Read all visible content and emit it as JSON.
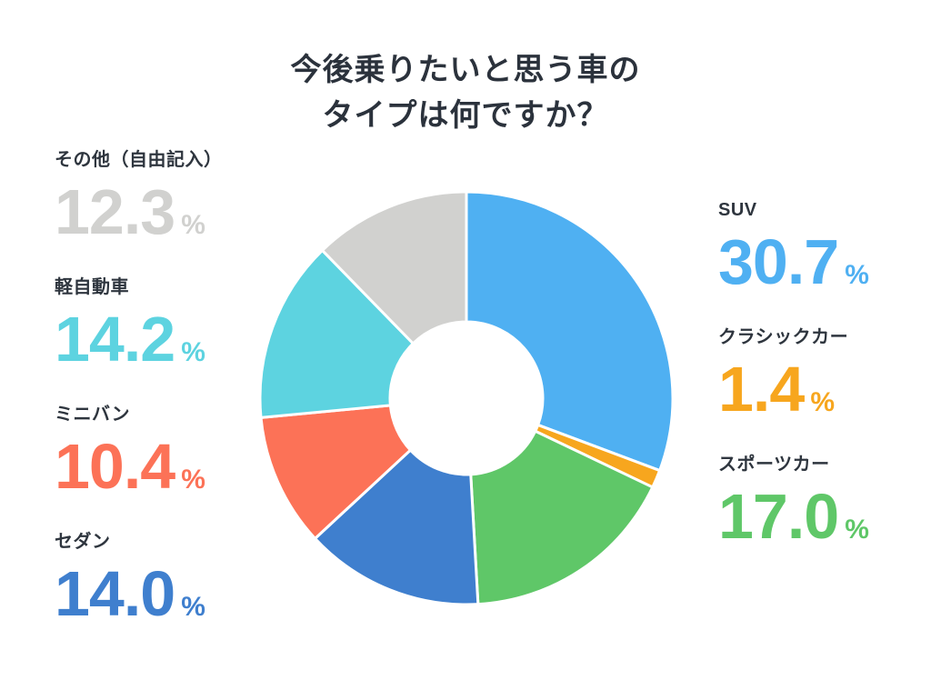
{
  "title": {
    "lines": [
      "今後乗りたいと思う車の",
      "タイプは何ですか？"
    ],
    "full": "今後乗りたいと思う車のタイプは何ですか？"
  },
  "text_colors": {
    "title": "#2B323C",
    "label": "#2E353E"
  },
  "chart_data": {
    "type": "pie",
    "subtype": "donut",
    "title": "今後乗りたいと思う車のタイプは何ですか？",
    "unit": "%",
    "direction": "clockwise",
    "start_angle_deg": 0,
    "inner_radius_ratio": 0.37,
    "slices": [
      {
        "label": "SUV",
        "value": 30.7,
        "display": "30.7",
        "color": "#4FB0F2"
      },
      {
        "label": "クラシックカー",
        "value": 1.4,
        "display": "1.4",
        "color": "#F7A61E"
      },
      {
        "label": "スポーツカー",
        "value": 17.0,
        "display": "17.0",
        "color": "#5FC768"
      },
      {
        "label": "セダン",
        "value": 14.0,
        "display": "14.0",
        "color": "#3F7FCE"
      },
      {
        "label": "ミニバン",
        "value": 10.4,
        "display": "10.4",
        "color": "#FC7257"
      },
      {
        "label": "軽自動車",
        "value": 14.2,
        "display": "14.2",
        "color": "#5DD3E0"
      },
      {
        "label": "その他（自由記入）",
        "value": 12.3,
        "display": "12.3",
        "color": "#D1D1CF"
      }
    ],
    "legend_left_indices": [
      6,
      5,
      4,
      3
    ],
    "legend_right_indices": [
      0,
      1,
      2
    ]
  }
}
